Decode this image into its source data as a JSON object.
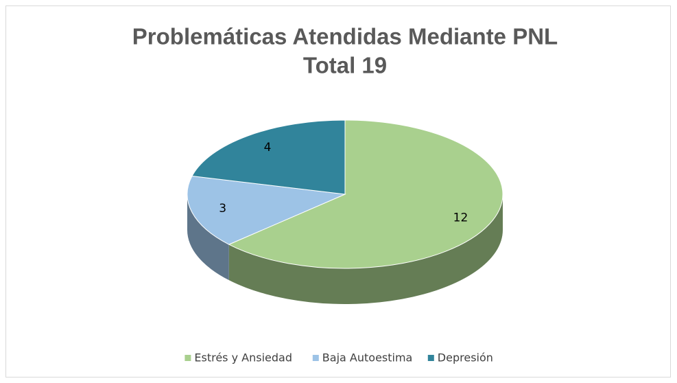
{
  "chart_data": {
    "type": "pie3d",
    "title": "Problemáticas Atendidas Mediante PNL",
    "subtitle": "Total 19",
    "categories": [
      "Estrés y Ansiedad",
      "Baja Autoestima",
      "Depresión"
    ],
    "values": [
      12,
      3,
      4
    ],
    "colors": [
      "#a9d08e",
      "#9dc3e6",
      "#31849b"
    ],
    "legend": "bottom"
  }
}
